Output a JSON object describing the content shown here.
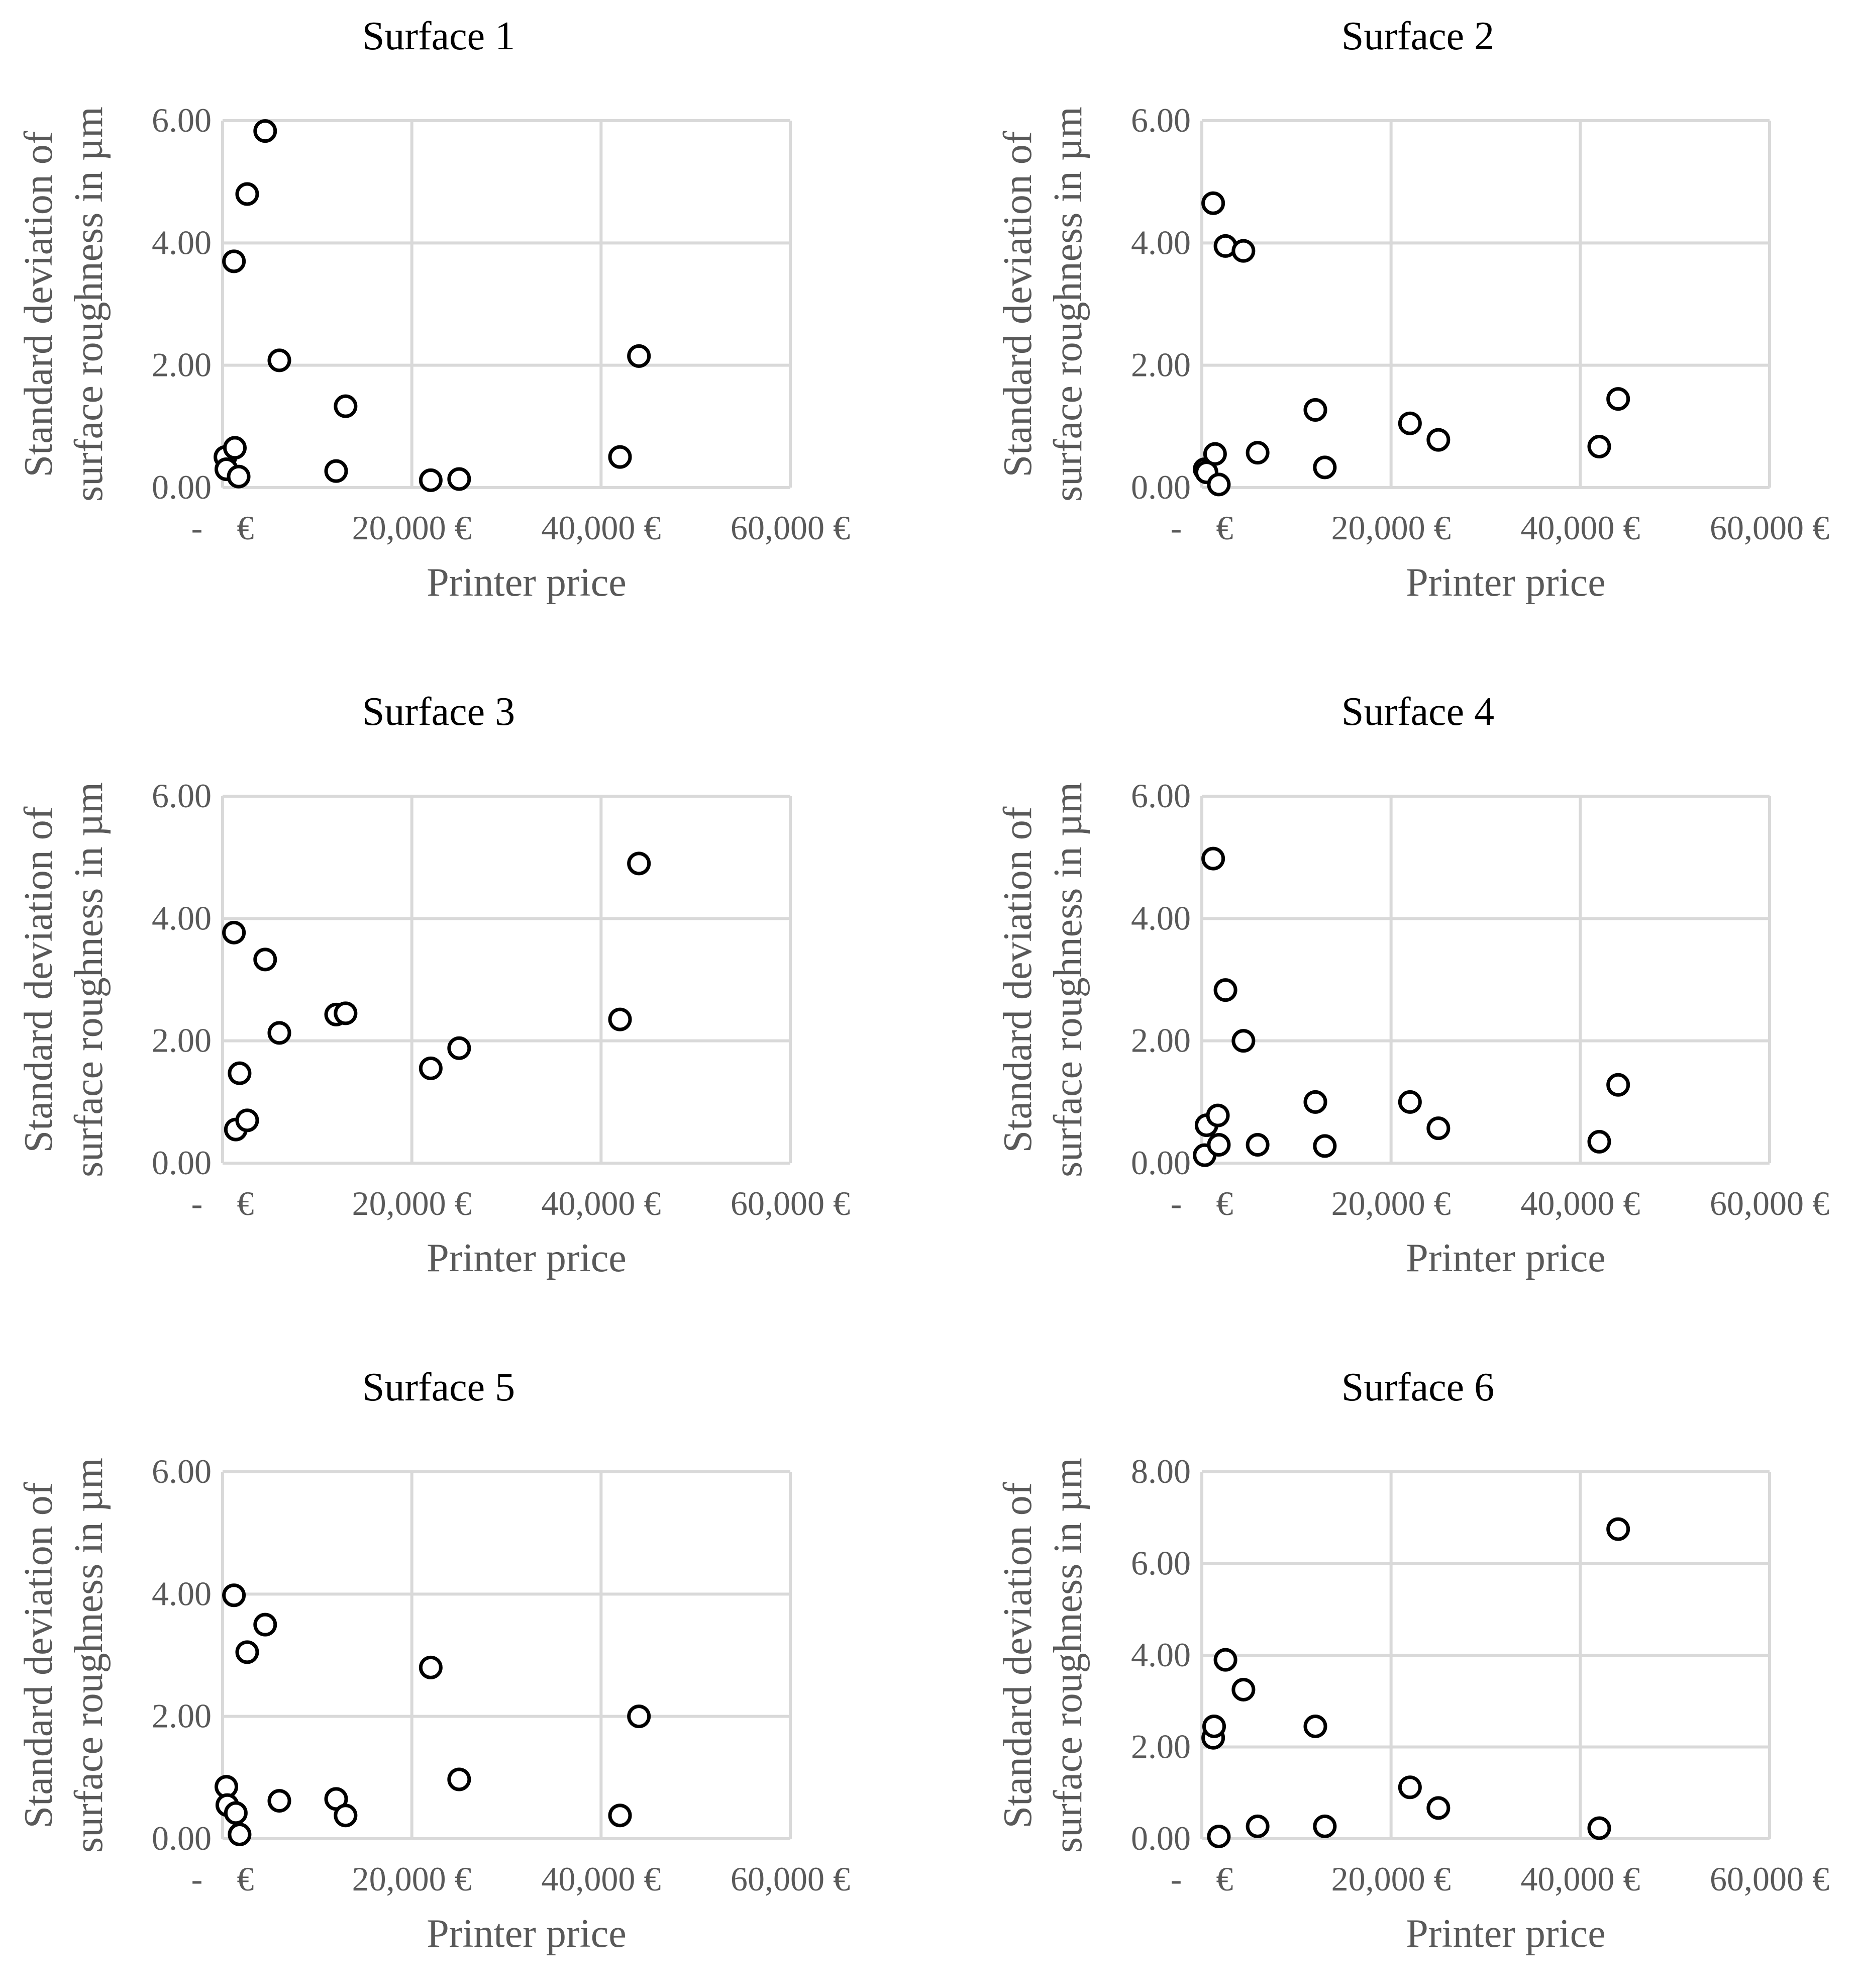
{
  "chart_data": [
    {
      "type": "scatter",
      "title": "Surface 1",
      "xlabel": "Printer price",
      "ylabel": [
        "Standard deviation of",
        "surface roughness in µm"
      ],
      "xlim": [
        0,
        60000
      ],
      "ylim": [
        0,
        6
      ],
      "xticks": [
        "- €",
        "20,000 €",
        "40,000 €",
        "60,000 €"
      ],
      "yticks": [
        "0.00",
        "2.00",
        "4.00",
        "6.00"
      ],
      "grid": true,
      "x": [
        300,
        400,
        1300,
        1200,
        1700,
        2600,
        4500,
        6000,
        12000,
        13000,
        22000,
        25000,
        42000,
        44000
      ],
      "y": [
        0.5,
        0.3,
        0.65,
        3.7,
        0.18,
        4.8,
        5.83,
        2.08,
        0.27,
        1.33,
        0.12,
        0.14,
        0.5,
        2.15
      ]
    },
    {
      "type": "scatter",
      "title": "Surface 2",
      "xlabel": "Printer price",
      "ylabel": [
        "Standard deviation of",
        "surface roughness in µm"
      ],
      "xlim": [
        0,
        60000
      ],
      "ylim": [
        0,
        6
      ],
      "xticks": [
        "- €",
        "20,000 €",
        "40,000 €",
        "60,000 €"
      ],
      "yticks": [
        "0.00",
        "2.00",
        "4.00",
        "6.00"
      ],
      "grid": true,
      "x": [
        300,
        500,
        1200,
        1400,
        1800,
        2500,
        4400,
        5900,
        12000,
        13000,
        22000,
        25000,
        42000,
        44000
      ],
      "y": [
        0.3,
        0.25,
        4.65,
        0.55,
        0.05,
        3.95,
        3.87,
        0.57,
        1.27,
        0.33,
        1.05,
        0.78,
        0.67,
        1.45
      ]
    },
    {
      "type": "scatter",
      "title": "Surface 3",
      "xlabel": "Printer price",
      "ylabel": [
        "Standard deviation of",
        "surface roughness in µm"
      ],
      "xlim": [
        0,
        60000
      ],
      "ylim": [
        0,
        6
      ],
      "xticks": [
        "- €",
        "20,000 €",
        "40,000 €",
        "60,000 €"
      ],
      "yticks": [
        "0.00",
        "2.00",
        "4.00",
        "6.00"
      ],
      "grid": true,
      "x": [
        1200,
        1400,
        1800,
        2600,
        4500,
        6000,
        12000,
        13000,
        22000,
        25000,
        42000,
        44000
      ],
      "y": [
        3.77,
        0.55,
        1.47,
        0.7,
        3.33,
        2.13,
        2.43,
        2.45,
        1.55,
        1.88,
        2.35,
        4.9
      ]
    },
    {
      "type": "scatter",
      "title": "Surface 4",
      "xlabel": "Printer price",
      "ylabel": [
        "Standard deviation of",
        "surface roughness in µm"
      ],
      "xlim": [
        0,
        60000
      ],
      "ylim": [
        0,
        6
      ],
      "xticks": [
        "- €",
        "20,000 €",
        "40,000 €",
        "60,000 €"
      ],
      "yticks": [
        "0.00",
        "2.00",
        "4.00",
        "6.00"
      ],
      "grid": true,
      "x": [
        300,
        500,
        1200,
        1700,
        1800,
        2500,
        4400,
        5900,
        12000,
        13000,
        22000,
        25000,
        42000,
        44000
      ],
      "y": [
        0.13,
        0.62,
        4.98,
        0.78,
        0.3,
        2.83,
        2.0,
        0.3,
        1.0,
        0.28,
        1.0,
        0.57,
        0.35,
        1.28
      ]
    },
    {
      "type": "scatter",
      "title": "Surface 5",
      "xlabel": "Printer price",
      "ylabel": [
        "Standard deviation of",
        "surface roughness in µm"
      ],
      "xlim": [
        0,
        60000
      ],
      "ylim": [
        0,
        6
      ],
      "xticks": [
        "- €",
        "20,000 €",
        "40,000 €",
        "60,000 €"
      ],
      "yticks": [
        "0.00",
        "2.00",
        "4.00",
        "6.00"
      ],
      "grid": true,
      "x": [
        400,
        500,
        1200,
        1400,
        1800,
        2600,
        4500,
        6000,
        12000,
        13000,
        22000,
        25000,
        42000,
        44000
      ],
      "y": [
        0.85,
        0.55,
        3.98,
        0.42,
        0.07,
        3.05,
        3.5,
        0.62,
        0.65,
        0.38,
        2.8,
        0.97,
        0.38,
        2.0
      ]
    },
    {
      "type": "scatter",
      "title": "Surface 6",
      "xlabel": "Printer price",
      "ylabel": [
        "Standard deviation of",
        "surface roughness in µm"
      ],
      "xlim": [
        0,
        60000
      ],
      "ylim": [
        0,
        8
      ],
      "xticks": [
        "- €",
        "20,000 €",
        "40,000 €",
        "60,000 €"
      ],
      "yticks": [
        "0.00",
        "2.00",
        "4.00",
        "6.00",
        "8.00"
      ],
      "grid": true,
      "x": [
        1200,
        1300,
        1800,
        2500,
        4400,
        5900,
        12000,
        13000,
        22000,
        25000,
        42000,
        44000
      ],
      "y": [
        2.2,
        2.45,
        0.05,
        3.9,
        3.25,
        0.27,
        2.45,
        0.27,
        1.12,
        0.67,
        0.23,
        6.75
      ]
    }
  ]
}
